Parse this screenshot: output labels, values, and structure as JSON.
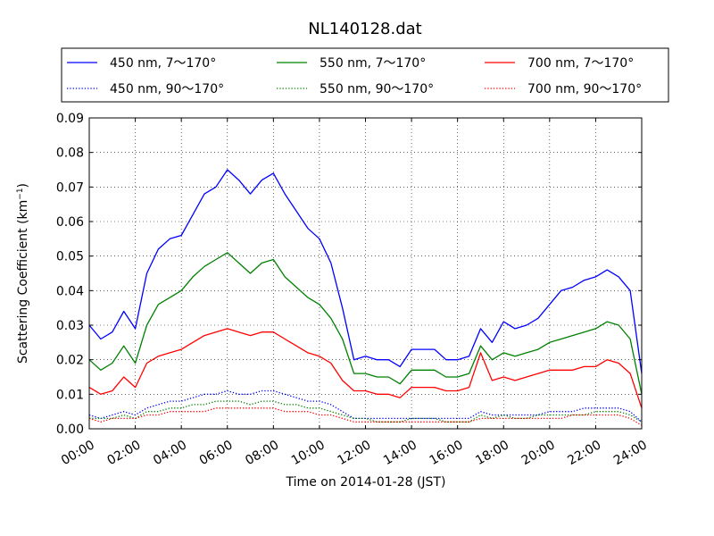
{
  "chart_data": {
    "type": "line",
    "title": "NL140128.dat",
    "xlabel": "Time on 2014-01-28 (JST)",
    "ylabel": "Scattering Coefficient (km",
    "ylabel_sup": "−1",
    "ylabel_close": ")",
    "x_unit": "hour",
    "xlim": [
      0,
      24
    ],
    "ylim": [
      0,
      0.09
    ],
    "grid": true,
    "legend_position": "top",
    "x_ticks": [
      {
        "value": 0,
        "label": "00:00"
      },
      {
        "value": 2,
        "label": "02:00"
      },
      {
        "value": 4,
        "label": "04:00"
      },
      {
        "value": 6,
        "label": "06:00"
      },
      {
        "value": 8,
        "label": "08:00"
      },
      {
        "value": 10,
        "label": "10:00"
      },
      {
        "value": 12,
        "label": "12:00"
      },
      {
        "value": 14,
        "label": "14:00"
      },
      {
        "value": 16,
        "label": "16:00"
      },
      {
        "value": 18,
        "label": "18:00"
      },
      {
        "value": 20,
        "label": "20:00"
      },
      {
        "value": 22,
        "label": "22:00"
      },
      {
        "value": 24,
        "label": "24:00"
      }
    ],
    "y_ticks": [
      {
        "value": 0.0,
        "label": "0.00"
      },
      {
        "value": 0.01,
        "label": "0.01"
      },
      {
        "value": 0.02,
        "label": "0.02"
      },
      {
        "value": 0.03,
        "label": "0.03"
      },
      {
        "value": 0.04,
        "label": "0.04"
      },
      {
        "value": 0.05,
        "label": "0.05"
      },
      {
        "value": 0.06,
        "label": "0.06"
      },
      {
        "value": 0.07,
        "label": "0.07"
      },
      {
        "value": 0.08,
        "label": "0.08"
      },
      {
        "value": 0.09,
        "label": "0.09"
      }
    ],
    "x": [
      0,
      0.5,
      1,
      1.5,
      2,
      2.5,
      3,
      3.5,
      4,
      4.5,
      5,
      5.5,
      6,
      6.5,
      7,
      7.5,
      8,
      8.5,
      9,
      9.5,
      10,
      10.5,
      11,
      11.5,
      12,
      12.5,
      13,
      13.5,
      14,
      14.5,
      15,
      15.5,
      16,
      16.5,
      17,
      17.5,
      18,
      18.5,
      19,
      19.5,
      20,
      20.5,
      21,
      21.5,
      22,
      22.5,
      23,
      23.5,
      24
    ],
    "series": [
      {
        "name": "450 nm, 7～170°",
        "color": "#0000ff",
        "style": "solid",
        "values": [
          0.03,
          0.026,
          0.028,
          0.034,
          0.029,
          0.045,
          0.052,
          0.055,
          0.056,
          0.062,
          0.068,
          0.07,
          0.075,
          0.072,
          0.068,
          0.072,
          0.074,
          0.068,
          0.063,
          0.058,
          0.055,
          0.048,
          0.035,
          0.02,
          0.021,
          0.02,
          0.02,
          0.018,
          0.023,
          0.023,
          0.023,
          0.02,
          0.02,
          0.021,
          0.029,
          0.025,
          0.031,
          0.029,
          0.03,
          0.032,
          0.036,
          0.04,
          0.041,
          0.043,
          0.044,
          0.046,
          0.044,
          0.04,
          0.016
        ]
      },
      {
        "name": "550 nm, 7～170°",
        "color": "#008000",
        "style": "solid",
        "values": [
          0.02,
          0.017,
          0.019,
          0.024,
          0.019,
          0.03,
          0.036,
          0.038,
          0.04,
          0.044,
          0.047,
          0.049,
          0.051,
          0.048,
          0.045,
          0.048,
          0.049,
          0.044,
          0.041,
          0.038,
          0.036,
          0.032,
          0.026,
          0.016,
          0.016,
          0.015,
          0.015,
          0.013,
          0.017,
          0.017,
          0.017,
          0.015,
          0.015,
          0.016,
          0.024,
          0.02,
          0.022,
          0.021,
          0.022,
          0.023,
          0.025,
          0.026,
          0.027,
          0.028,
          0.029,
          0.031,
          0.03,
          0.026,
          0.01
        ]
      },
      {
        "name": "700 nm, 7～170°",
        "color": "#ff0000",
        "style": "solid",
        "values": [
          0.012,
          0.01,
          0.011,
          0.015,
          0.012,
          0.019,
          0.021,
          0.022,
          0.023,
          0.025,
          0.027,
          0.028,
          0.029,
          0.028,
          0.027,
          0.028,
          0.028,
          0.026,
          0.024,
          0.022,
          0.021,
          0.019,
          0.014,
          0.011,
          0.011,
          0.01,
          0.01,
          0.009,
          0.012,
          0.012,
          0.012,
          0.011,
          0.011,
          0.012,
          0.022,
          0.014,
          0.015,
          0.014,
          0.015,
          0.016,
          0.017,
          0.017,
          0.017,
          0.018,
          0.018,
          0.02,
          0.019,
          0.016,
          0.006
        ]
      },
      {
        "name": "450 nm, 90～170°",
        "color": "#0000ff",
        "style": "dotted",
        "values": [
          0.004,
          0.003,
          0.004,
          0.005,
          0.004,
          0.006,
          0.007,
          0.008,
          0.008,
          0.009,
          0.01,
          0.01,
          0.011,
          0.01,
          0.01,
          0.011,
          0.011,
          0.01,
          0.009,
          0.008,
          0.008,
          0.007,
          0.005,
          0.003,
          0.003,
          0.003,
          0.003,
          0.003,
          0.003,
          0.003,
          0.003,
          0.003,
          0.003,
          0.003,
          0.005,
          0.004,
          0.004,
          0.004,
          0.004,
          0.004,
          0.005,
          0.005,
          0.005,
          0.006,
          0.006,
          0.006,
          0.006,
          0.005,
          0.002
        ]
      },
      {
        "name": "550 nm, 90～170°",
        "color": "#008000",
        "style": "dotted",
        "values": [
          0.003,
          0.003,
          0.003,
          0.004,
          0.003,
          0.005,
          0.005,
          0.006,
          0.006,
          0.007,
          0.007,
          0.008,
          0.008,
          0.008,
          0.007,
          0.008,
          0.008,
          0.007,
          0.007,
          0.006,
          0.006,
          0.005,
          0.004,
          0.003,
          0.003,
          0.002,
          0.002,
          0.002,
          0.003,
          0.003,
          0.003,
          0.002,
          0.002,
          0.002,
          0.004,
          0.003,
          0.004,
          0.003,
          0.003,
          0.004,
          0.004,
          0.004,
          0.004,
          0.004,
          0.005,
          0.005,
          0.005,
          0.004,
          0.002
        ]
      },
      {
        "name": "700 nm, 90～170°",
        "color": "#ff0000",
        "style": "dotted",
        "values": [
          0.003,
          0.002,
          0.003,
          0.003,
          0.003,
          0.004,
          0.004,
          0.005,
          0.005,
          0.005,
          0.005,
          0.006,
          0.006,
          0.006,
          0.006,
          0.006,
          0.006,
          0.005,
          0.005,
          0.005,
          0.004,
          0.004,
          0.003,
          0.002,
          0.002,
          0.002,
          0.002,
          0.002,
          0.002,
          0.002,
          0.002,
          0.002,
          0.002,
          0.002,
          0.003,
          0.003,
          0.003,
          0.003,
          0.003,
          0.003,
          0.003,
          0.003,
          0.004,
          0.004,
          0.004,
          0.004,
          0.004,
          0.003,
          0.001
        ]
      }
    ]
  }
}
